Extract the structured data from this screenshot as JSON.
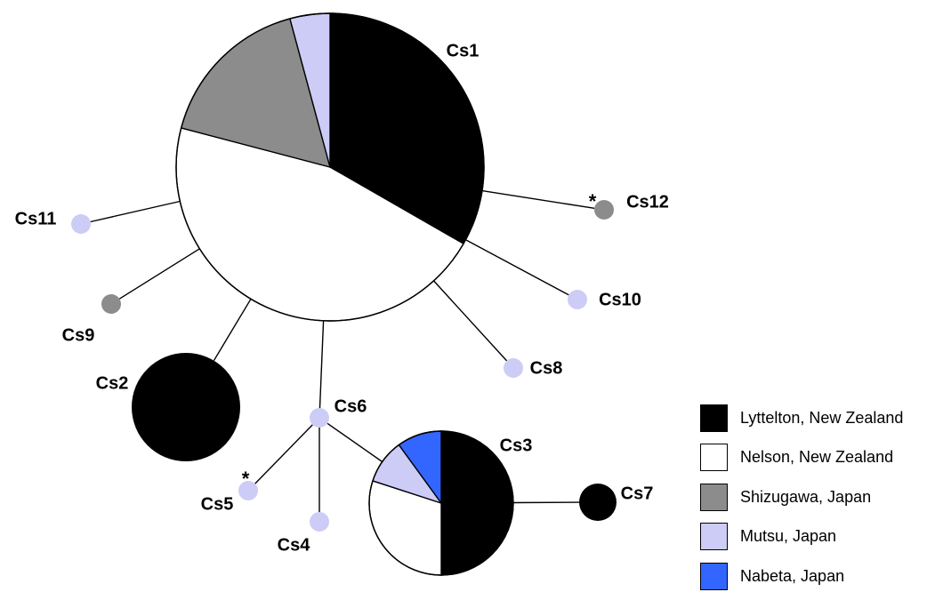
{
  "populations": [
    {
      "id": "lyttelton",
      "label": "Lyttelton, New Zealand",
      "color": "#000000"
    },
    {
      "id": "nelson",
      "label": "Nelson, New Zealand",
      "color": "#ffffff"
    },
    {
      "id": "shizugawa",
      "label": "Shizugawa, Japan",
      "color": "#8c8c8c"
    },
    {
      "id": "mutsu",
      "label": "Mutsu, Japan",
      "color": "#ccccf7"
    },
    {
      "id": "nabeta",
      "label": "Nabeta, Japan",
      "color": "#3366ff"
    }
  ],
  "haplotypes": [
    {
      "id": "Cs1",
      "label": "Cs1",
      "star": "",
      "composition": {
        "lyttelton": 0.333,
        "nelson": 0.458,
        "shizugawa": 0.167,
        "mutsu": 0.042
      }
    },
    {
      "id": "Cs2",
      "label": "Cs2",
      "star": "",
      "composition": {
        "lyttelton": 1
      }
    },
    {
      "id": "Cs3",
      "label": "Cs3",
      "star": "",
      "composition": {
        "lyttelton": 0.5,
        "nelson": 0.3,
        "mutsu": 0.1,
        "nabeta": 0.1
      }
    },
    {
      "id": "Cs4",
      "label": "Cs4",
      "star": "",
      "composition": {
        "mutsu": 1
      }
    },
    {
      "id": "Cs5",
      "label": "Cs5",
      "star": "*",
      "composition": {
        "mutsu": 1
      }
    },
    {
      "id": "Cs6",
      "label": "Cs6",
      "star": "",
      "composition": {
        "mutsu": 1
      }
    },
    {
      "id": "Cs7",
      "label": "Cs7",
      "star": "",
      "composition": {
        "lyttelton": 1
      }
    },
    {
      "id": "Cs8",
      "label": "Cs8",
      "star": "",
      "composition": {
        "mutsu": 1
      }
    },
    {
      "id": "Cs9",
      "label": "Cs9",
      "star": "",
      "composition": {
        "shizugawa": 1
      }
    },
    {
      "id": "Cs10",
      "label": "Cs10",
      "star": "",
      "composition": {
        "mutsu": 1
      }
    },
    {
      "id": "Cs11",
      "label": "Cs11",
      "star": "",
      "composition": {
        "mutsu": 1
      }
    },
    {
      "id": "Cs12",
      "label": "Cs12",
      "star": "*",
      "composition": {
        "shizugawa": 1
      }
    }
  ],
  "links": [
    [
      "Cs1",
      "Cs2"
    ],
    [
      "Cs1",
      "Cs6"
    ],
    [
      "Cs1",
      "Cs8"
    ],
    [
      "Cs1",
      "Cs9"
    ],
    [
      "Cs1",
      "Cs10"
    ],
    [
      "Cs1",
      "Cs11"
    ],
    [
      "Cs1",
      "Cs12"
    ],
    [
      "Cs6",
      "Cs3"
    ],
    [
      "Cs6",
      "Cs4"
    ],
    [
      "Cs6",
      "Cs5"
    ],
    [
      "Cs3",
      "Cs7"
    ]
  ]
}
